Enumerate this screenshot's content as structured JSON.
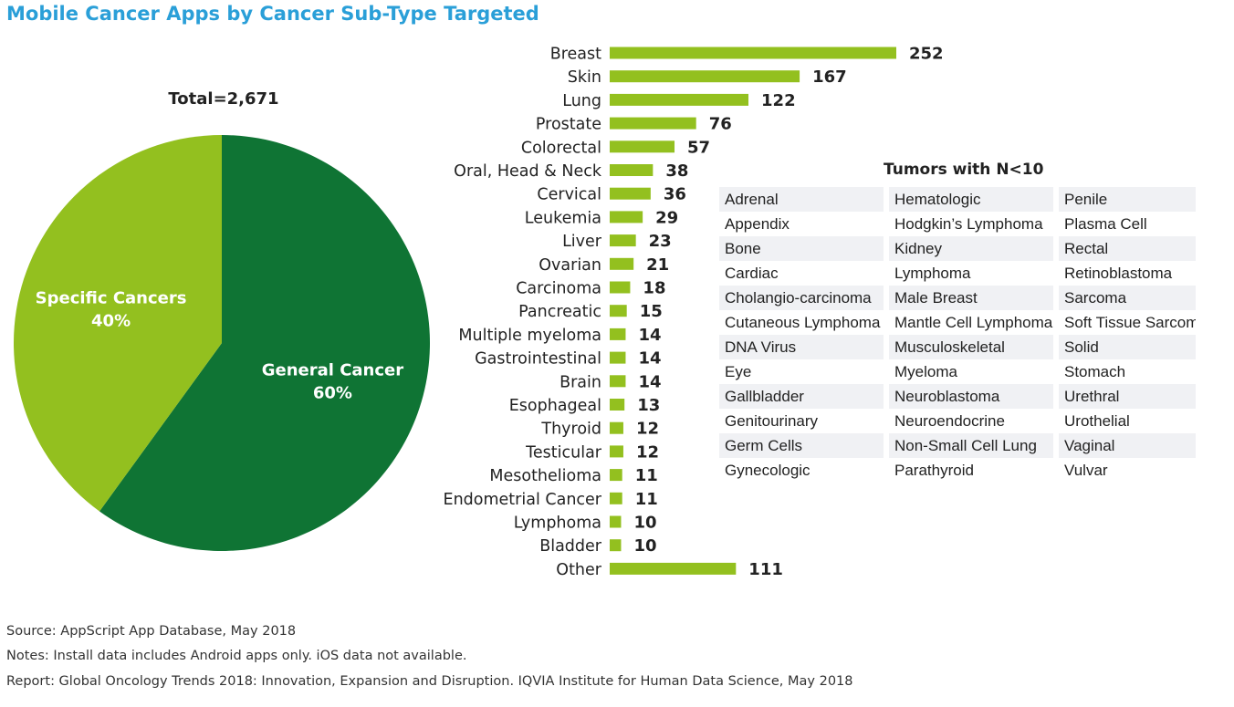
{
  "title": "Mobile Cancer Apps by Cancer Sub-Type Targeted",
  "colors": {
    "title": "#2a9fd8",
    "dark_green": "#0f7434",
    "light_green": "#93c01f",
    "cell_shade": "#f0f1f4"
  },
  "chart_data": [
    {
      "type": "pie",
      "title": "Total=2,671",
      "slices": [
        {
          "label": "General Cancer",
          "percent_label": "60%",
          "value": 60,
          "color": "#0f7434"
        },
        {
          "label": "Specific Cancers",
          "percent_label": "40%",
          "value": 40,
          "color": "#93c01f"
        }
      ]
    },
    {
      "type": "bar",
      "orientation": "horizontal",
      "categories": [
        "Breast",
        "Skin",
        "Lung",
        "Prostate",
        "Colorectal",
        "Oral, Head & Neck",
        "Cervical",
        "Leukemia",
        "Liver",
        "Ovarian",
        "Carcinoma",
        "Pancreatic",
        "Multiple myeloma",
        "Gastrointestinal",
        "Brain",
        "Esophageal",
        "Thyroid",
        "Testicular",
        "Mesothelioma",
        "Endometrial Cancer",
        "Lymphoma",
        "Bladder",
        "Other"
      ],
      "values": [
        252,
        167,
        122,
        76,
        57,
        38,
        36,
        29,
        23,
        21,
        18,
        15,
        14,
        14,
        14,
        13,
        12,
        12,
        11,
        11,
        10,
        10,
        111
      ],
      "color": "#93c01f",
      "xlim": [
        0,
        252
      ]
    }
  ],
  "tumors": {
    "title": "Tumors with N<10",
    "rows": [
      [
        "Adrenal",
        "Hematologic",
        "Penile"
      ],
      [
        "Appendix",
        "Hodgkin’s Lymphoma",
        "Plasma Cell"
      ],
      [
        "Bone",
        "Kidney",
        "Rectal"
      ],
      [
        "Cardiac",
        "Lymphoma",
        "Retinoblastoma"
      ],
      [
        "Cholangio-carcinoma",
        "Male Breast",
        "Sarcoma"
      ],
      [
        "Cutaneous Lymphoma",
        "Mantle Cell Lymphoma",
        "Soft Tissue Sarcoma"
      ],
      [
        "DNA Virus",
        "Musculoskeletal",
        "Solid"
      ],
      [
        "Eye",
        "Myeloma",
        "Stomach"
      ],
      [
        "Gallbladder",
        "Neuroblastoma",
        "Urethral"
      ],
      [
        "Genitourinary",
        "Neuroendocrine",
        "Urothelial"
      ],
      [
        "Germ Cells",
        "Non-Small Cell Lung",
        "Vaginal"
      ],
      [
        "Gynecologic",
        "Parathyroid",
        "Vulvar"
      ]
    ]
  },
  "footer": {
    "source": "Source: AppScript App Database, May 2018",
    "notes": "Notes: Install data includes Android apps only. iOS data not available.",
    "report": "Report: Global Oncology Trends 2018: Innovation, Expansion and Disruption. IQVIA Institute for Human Data Science, May 2018"
  }
}
